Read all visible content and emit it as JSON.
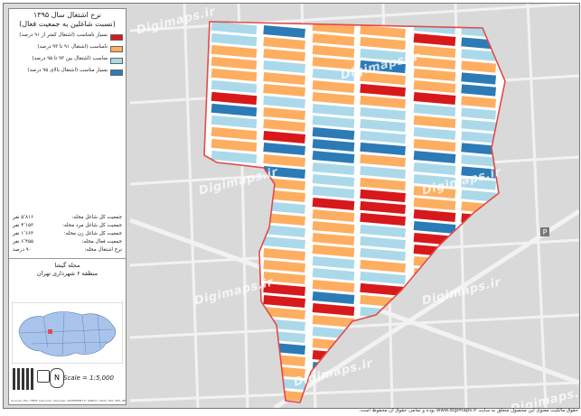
{
  "legend": {
    "title": "نرخ اشتغال سال ۱۳۹۵",
    "subtitle": "(نسبت شاغلین به جمعیت فعال)",
    "items": [
      {
        "label": "بسیار نامناسب (اشتغال کمتر از ۹۱ درصد)",
        "color": "#d7191c"
      },
      {
        "label": "نامناسب (اشتغال ۹۱ تا ۹۳ درصد)",
        "color": "#fdae61"
      },
      {
        "label": "مناسب (اشتغال بین ۹۳ تا ۹۵ درصد)",
        "color": "#abd9e9"
      },
      {
        "label": "بسیار مناسب (اشتغال بالای ۹۵ درصد)",
        "color": "#2c7bb6"
      }
    ]
  },
  "stats": [
    {
      "label": "جمعیت کل شاغل محله:",
      "value": "۵٬۸۱۶ نفر"
    },
    {
      "label": "جمعیت کل شاغل مرد محله:",
      "value": "۴٬۱۵۳ نفر"
    },
    {
      "label": "جمعیت کل شاغل زن محله:",
      "value": "۱٬۶۶۳ نفر"
    },
    {
      "label": "جمعیت فعال محله:",
      "value": "۶٬۴۵۵ نفر"
    },
    {
      "label": "نرخ اشتغال محله:",
      "value": "۹۰ درصد"
    }
  ],
  "location": {
    "neighborhood": "محله گیشا",
    "district": "منطقه ۶ شهرداری تهران"
  },
  "scale": "Scale = 1:5,000",
  "north": "N",
  "watermark": "Digimaps.ir",
  "footer": "حقوق مالکیت معنوی این محصول متعلق به سایت www.digimaps.ir بوده و تمامی حقوق آن محفوظ است.",
  "credits": "Sources: Esri, HERE, DeLorme, Intermap, INCREMENT P, GEBCO, USGS, FAO, NPS, NRCAN, GeoBase, IGN"
}
